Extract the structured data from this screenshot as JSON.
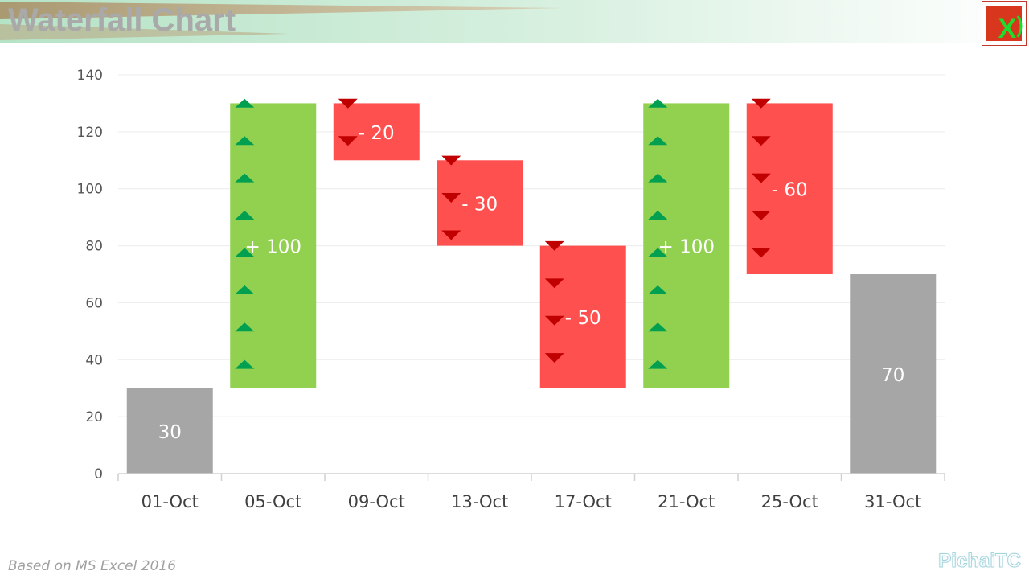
{
  "header": {
    "title": "Waterfall Chart",
    "logo_icon": "excel-logo-icon",
    "logo_text": "X",
    "colors": {
      "band_green": "#b5e3c6",
      "swoosh": "#b39a72",
      "logo_red": "#d8371d",
      "logo_x": "#1cdc2c"
    }
  },
  "chart_data": {
    "type": "bar",
    "subtype": "waterfall",
    "title": "",
    "xlabel": "",
    "ylabel": "",
    "categories": [
      "01-Oct",
      "05-Oct",
      "09-Oct",
      "13-Oct",
      "17-Oct",
      "21-Oct",
      "25-Oct",
      "31-Oct"
    ],
    "bars": [
      {
        "category": "01-Oct",
        "kind": "total",
        "base": 0,
        "top": 30,
        "label": "30"
      },
      {
        "category": "05-Oct",
        "kind": "increase",
        "base": 30,
        "top": 130,
        "label": "+ 100"
      },
      {
        "category": "09-Oct",
        "kind": "decrease",
        "base": 110,
        "top": 130,
        "label": "- 20"
      },
      {
        "category": "13-Oct",
        "kind": "decrease",
        "base": 80,
        "top": 110,
        "label": "- 30"
      },
      {
        "category": "17-Oct",
        "kind": "decrease",
        "base": 30,
        "top": 80,
        "label": "- 50"
      },
      {
        "category": "21-Oct",
        "kind": "increase",
        "base": 30,
        "top": 130,
        "label": "+ 100"
      },
      {
        "category": "25-Oct",
        "kind": "decrease",
        "base": 70,
        "top": 130,
        "label": "- 60"
      },
      {
        "category": "31-Oct",
        "kind": "total",
        "base": 0,
        "top": 70,
        "label": "70"
      }
    ],
    "ylim": [
      0,
      140
    ],
    "yticks": [
      0,
      20,
      40,
      60,
      80,
      100,
      120,
      140
    ],
    "grid": true,
    "legend": "none",
    "colors": {
      "total": "#a6a6a6",
      "increase": "#92d050",
      "decrease": "#ff5050",
      "up_marker": "#00a050",
      "down_marker": "#c00000",
      "grid": "#ececec",
      "axis": "#d0d0d0",
      "tick_text": "#555555",
      "category_text": "#404040",
      "label_text": "#ffffff"
    }
  },
  "footer": {
    "note": "Based on MS Excel 2016",
    "brand": "PichaiTC"
  }
}
